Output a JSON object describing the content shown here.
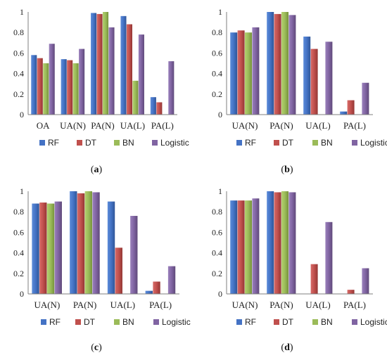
{
  "colors": {
    "RF": "#4472C4",
    "DT": "#C0504D",
    "BN": "#9BBB59",
    "Logistic": "#8064A2",
    "axis": "#7f7f7f"
  },
  "legend_order": [
    "RF",
    "DT",
    "BN",
    "Logistic"
  ],
  "chart_data": [
    {
      "id": "a",
      "panel_label": [
        "(",
        "a",
        ")"
      ],
      "type": "bar",
      "categories": [
        "OA",
        "UA(N)",
        "PA(N)",
        "UA(L)",
        "PA(L)"
      ],
      "series": [
        {
          "name": "RF",
          "values": [
            0.58,
            0.54,
            0.99,
            0.96,
            0.17
          ]
        },
        {
          "name": "DT",
          "values": [
            0.55,
            0.53,
            0.98,
            0.88,
            0.12
          ]
        },
        {
          "name": "BN",
          "values": [
            0.5,
            0.5,
            1.0,
            0.33,
            0.0
          ]
        },
        {
          "name": "Logistic",
          "values": [
            0.69,
            0.64,
            0.85,
            0.78,
            0.52
          ]
        }
      ],
      "ylim": [
        0,
        1
      ],
      "yticks": [
        "0",
        "0.2",
        "0.4",
        "0.6",
        "0.8",
        "1"
      ],
      "legend": "bottom"
    },
    {
      "id": "b",
      "panel_label": [
        "(",
        "b",
        ")"
      ],
      "type": "bar",
      "categories": [
        "UA(N)",
        "PA(N)",
        "UA(L)",
        "PA(L)"
      ],
      "series": [
        {
          "name": "RF",
          "values": [
            0.8,
            1.0,
            0.76,
            0.03
          ]
        },
        {
          "name": "DT",
          "values": [
            0.82,
            0.98,
            0.64,
            0.14
          ]
        },
        {
          "name": "BN",
          "values": [
            0.8,
            1.0,
            0.0,
            0.0
          ]
        },
        {
          "name": "Logistic",
          "values": [
            0.85,
            0.97,
            0.71,
            0.31
          ]
        }
      ],
      "ylim": [
        0,
        1
      ],
      "yticks": [
        "0",
        "0.2",
        "0.4",
        "0.6",
        "0.8",
        "1"
      ],
      "legend": "bottom"
    },
    {
      "id": "c",
      "panel_label": [
        "(",
        "c",
        ")"
      ],
      "type": "bar",
      "categories": [
        "UA(N)",
        "PA(N)",
        "UA(L)",
        "PA(L)"
      ],
      "series": [
        {
          "name": "RF",
          "values": [
            0.88,
            1.0,
            0.9,
            0.03
          ]
        },
        {
          "name": "DT",
          "values": [
            0.89,
            0.98,
            0.45,
            0.12
          ]
        },
        {
          "name": "BN",
          "values": [
            0.88,
            1.0,
            0.0,
            0.0
          ]
        },
        {
          "name": "Logistic",
          "values": [
            0.9,
            0.99,
            0.76,
            0.27
          ]
        }
      ],
      "ylim": [
        0,
        1
      ],
      "yticks": [
        "0",
        "0.2",
        "0.4",
        "0.6",
        "0.8",
        "1"
      ],
      "legend": "bottom"
    },
    {
      "id": "d",
      "panel_label": [
        "(",
        "d",
        ")"
      ],
      "type": "bar",
      "categories": [
        "UA(N)",
        "PA(N)",
        "UA(L)",
        "PA(L)"
      ],
      "series": [
        {
          "name": "RF",
          "values": [
            0.91,
            1.0,
            0.0,
            0.0
          ]
        },
        {
          "name": "DT",
          "values": [
            0.91,
            0.99,
            0.29,
            0.04
          ]
        },
        {
          "name": "BN",
          "values": [
            0.91,
            1.0,
            0.0,
            0.0
          ]
        },
        {
          "name": "Logistic",
          "values": [
            0.93,
            0.99,
            0.7,
            0.25
          ]
        }
      ],
      "ylim": [
        0,
        1
      ],
      "yticks": [
        "0",
        "0.2",
        "0.4",
        "0.6",
        "0.8",
        "1"
      ],
      "legend": "bottom"
    }
  ]
}
